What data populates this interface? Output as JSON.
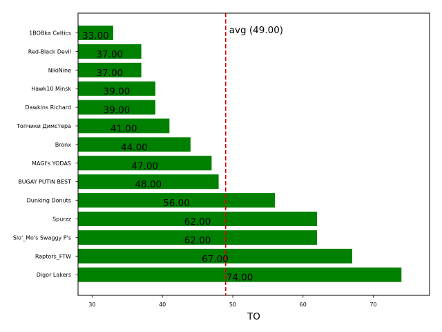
{
  "chart_data": {
    "type": "bar",
    "orientation": "horizontal",
    "categories": [
      "1BOBka Celtics",
      "Red-Black Devil",
      "NikiNine",
      "Hawk10 Minsk",
      "Dawkins Richard",
      "Топчики Димстера",
      "Bronx",
      "MAGI's YODAS",
      "BUGAY PUTIN BEST",
      "Dunking Donuts",
      "Spurzz",
      "Slo'_Mo's Swaggy P's",
      "Raptors_FTW",
      "Digor Lakers"
    ],
    "values": [
      33,
      37,
      37,
      39,
      39,
      41,
      44,
      47,
      48,
      56,
      62,
      62,
      67,
      74
    ],
    "value_labels": [
      "33.00",
      "37.00",
      "37.00",
      "39.00",
      "39.00",
      "41.00",
      "44.00",
      "47.00",
      "48.00",
      "56.00",
      "62.00",
      "62.00",
      "67.00",
      "74.00"
    ],
    "xlabel": "TO",
    "ylabel": "",
    "title": "",
    "xlim": [
      28,
      78
    ],
    "xticks": [
      30,
      40,
      50,
      60,
      70
    ],
    "xtick_labels": [
      "30",
      "40",
      "50",
      "60",
      "70"
    ],
    "reference_line": {
      "value": 49,
      "label": "avg (49.00)",
      "color": "#dd0000",
      "style": "dashed"
    },
    "bar_color": "#008000",
    "grid": false,
    "legend": false
  }
}
